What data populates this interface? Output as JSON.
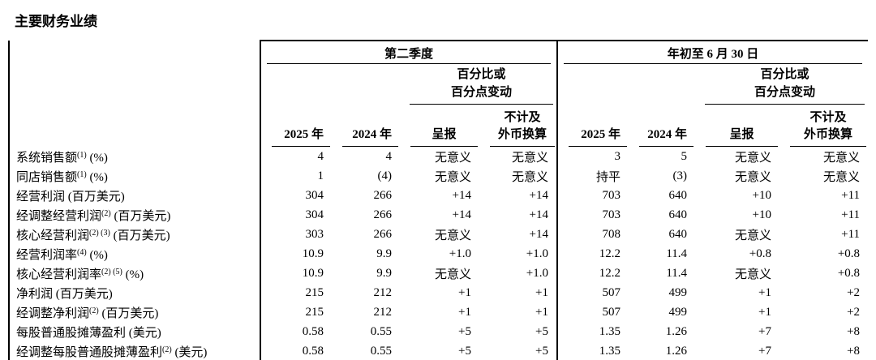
{
  "page": {
    "title": "主要财务业绩"
  },
  "table": {
    "groups": [
      {
        "label": "第二季度"
      },
      {
        "label": "年初至 6 月 30 日"
      }
    ],
    "pct_header": {
      "line1": "百分比或",
      "line2": "百分点变动"
    },
    "columns": {
      "year1": "2025 年",
      "year2": "2024 年",
      "reported": "呈报",
      "fx_line1": "不计及",
      "fx_line2": "外币换算"
    },
    "rows": [
      {
        "label": "系统销售额",
        "sup": "(1)",
        "unit": "(%)",
        "values": [
          "4",
          "4",
          "无意义",
          "无意义",
          "3",
          "5",
          "无意义",
          "无意义"
        ]
      },
      {
        "label": "同店销售额",
        "sup": "(1)",
        "unit": "(%)",
        "values": [
          "1",
          "(4)",
          "无意义",
          "无意义",
          "持平",
          "(3)",
          "无意义",
          "无意义"
        ]
      },
      {
        "label": "经营利润",
        "sup": "",
        "unit": "(百万美元)",
        "values": [
          "304",
          "266",
          "+14",
          "+14",
          "703",
          "640",
          "+10",
          "+11"
        ]
      },
      {
        "label": "经调整经营利润",
        "sup": "(2)",
        "unit": "(百万美元)",
        "values": [
          "304",
          "266",
          "+14",
          "+14",
          "703",
          "640",
          "+10",
          "+11"
        ]
      },
      {
        "label": "核心经营利润",
        "sup": "(2) (3)",
        "unit": "(百万美元)",
        "values": [
          "303",
          "266",
          "无意义",
          "+14",
          "708",
          "640",
          "无意义",
          "+11"
        ]
      },
      {
        "label": "经营利润率",
        "sup": "(4)",
        "unit": "(%)",
        "values": [
          "10.9",
          "9.9",
          "+1.0",
          "+1.0",
          "12.2",
          "11.4",
          "+0.8",
          "+0.8"
        ]
      },
      {
        "label": "核心经营利润率",
        "sup": "(2) (5)",
        "unit": "(%)",
        "values": [
          "10.9",
          "9.9",
          "无意义",
          "+1.0",
          "12.2",
          "11.4",
          "无意义",
          "+0.8"
        ]
      },
      {
        "label": "净利润",
        "sup": "",
        "unit": "(百万美元)",
        "values": [
          "215",
          "212",
          "+1",
          "+1",
          "507",
          "499",
          "+1",
          "+2"
        ]
      },
      {
        "label": "经调整净利润",
        "sup": "(2)",
        "unit": "(百万美元)",
        "values": [
          "215",
          "212",
          "+1",
          "+1",
          "507",
          "499",
          "+1",
          "+2"
        ]
      },
      {
        "label": "每股普通股摊薄盈利",
        "sup": "",
        "unit": "(美元)",
        "values": [
          "0.58",
          "0.55",
          "+5",
          "+5",
          "1.35",
          "1.26",
          "+7",
          "+8"
        ]
      },
      {
        "label": "经调整每股普通股摊薄盈利",
        "sup": "(2)",
        "unit": "(美元)",
        "values": [
          "0.58",
          "0.55",
          "+5",
          "+5",
          "1.35",
          "1.26",
          "+7",
          "+8"
        ]
      }
    ]
  }
}
